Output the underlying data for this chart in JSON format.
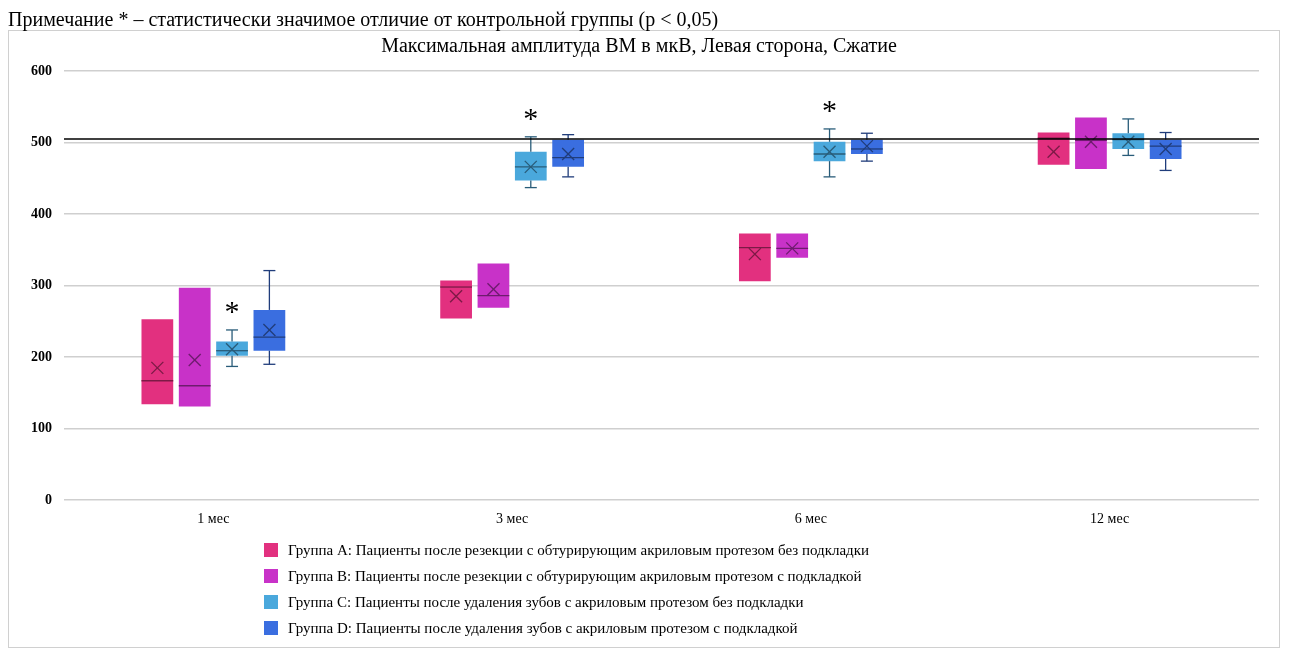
{
  "chart_data": {
    "type": "box",
    "title": "Максимальная амплитуда ВМ в мкВ, Левая сторона, Сжатие",
    "categories": [
      "1 мес",
      "3 мес",
      "6 мес",
      "12 мес"
    ],
    "series": [
      {
        "name": "Группа A: Пациенты после резекции с обтурирующим акриловым протезом без подкладки",
        "color": "#e2307f",
        "boxes": [
          {
            "low": 134,
            "q1": 134,
            "median": 167,
            "q3": 253,
            "high": 253,
            "mean": 185
          },
          {
            "low": 254,
            "q1": 254,
            "median": 298,
            "q3": 307,
            "high": 307,
            "mean": 285
          },
          {
            "low": 306,
            "q1": 306,
            "median": 353,
            "q3": 373,
            "high": 373,
            "mean": 344
          },
          {
            "low": 469,
            "q1": 469,
            "median": 506,
            "q3": 514,
            "high": 514,
            "mean": 487
          }
        ]
      },
      {
        "name": "Группа B: Пациенты после резекции с обтурирующим акриловым протезом с подкладкой",
        "color": "#c832c8",
        "boxes": [
          {
            "low": 131,
            "q1": 131,
            "median": 160,
            "q3": 297,
            "high": 297,
            "mean": 196
          },
          {
            "low": 269,
            "q1": 269,
            "median": 286,
            "q3": 331,
            "high": 331,
            "mean": 295
          },
          {
            "low": 339,
            "q1": 339,
            "median": 352,
            "q3": 373,
            "high": 373,
            "mean": 352
          },
          {
            "low": 463,
            "q1": 463,
            "median": 503,
            "q3": 535,
            "high": 535,
            "mean": 501
          }
        ]
      },
      {
        "name": "Группа C: Пациенты после удаления зубов с акриловым протезом без подкладки",
        "color": "#4aa8dc",
        "boxes": [
          {
            "low": 187,
            "q1": 202,
            "median": 209,
            "q3": 222,
            "high": 238,
            "mean": 211
          },
          {
            "low": 437,
            "q1": 447,
            "median": 466,
            "q3": 487,
            "high": 508,
            "mean": 466
          },
          {
            "low": 452,
            "q1": 474,
            "median": 484,
            "q3": 501,
            "high": 519,
            "mean": 487
          },
          {
            "low": 482,
            "q1": 491,
            "median": 504,
            "q3": 513,
            "high": 533,
            "mean": 501
          }
        ]
      },
      {
        "name": "Группа D: Пациенты после удаления зубов с акриловым протезом с подкладкой",
        "color": "#3a6ee0",
        "boxes": [
          {
            "low": 190,
            "q1": 209,
            "median": 228,
            "q3": 266,
            "high": 321,
            "mean": 238
          },
          {
            "low": 452,
            "q1": 466,
            "median": 479,
            "q3": 504,
            "high": 511,
            "mean": 484
          },
          {
            "low": 474,
            "q1": 484,
            "median": 491,
            "q3": 504,
            "high": 513,
            "mean": 495
          },
          {
            "low": 461,
            "q1": 477,
            "median": 495,
            "q3": 504,
            "high": 514,
            "mean": 491
          }
        ]
      }
    ],
    "ylim": [
      0,
      600
    ],
    "yticks": [
      0,
      100,
      200,
      300,
      400,
      500,
      600
    ],
    "grid": "y",
    "legend": "bottom",
    "ref_lines": [
      {
        "axis": "y",
        "value": 505,
        "color": "#000000"
      }
    ],
    "annotations": [
      "Примечание * – статистически значимое отличие от контрольной группы (р < 0,05)",
      {
        "text": "*",
        "x": "1 мес",
        "y": 238
      },
      {
        "text": "*",
        "x": "3 мес",
        "y": 508
      },
      {
        "text": "*",
        "x": "6 мес",
        "y": 501
      }
    ]
  }
}
